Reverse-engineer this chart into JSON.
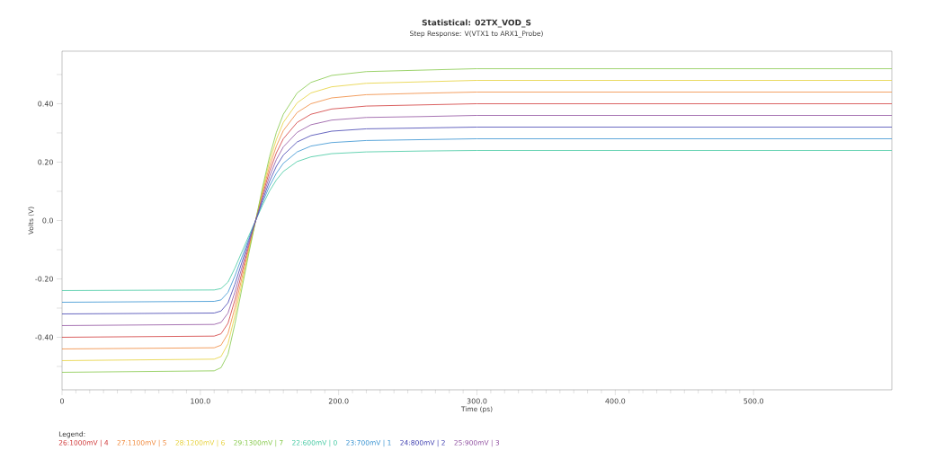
{
  "chart_data": {
    "type": "line",
    "title": "Statistical: 02TX_VOD_S",
    "subtitle": "Step Response: V(VTX1 to ARX1_Probe)",
    "xlabel": "Time (ps)",
    "ylabel": "Volts (V)",
    "legend_title": "Legend:",
    "legend": "bottom",
    "line_style": "solid",
    "x": [
      0,
      110,
      115,
      120,
      125,
      130,
      135,
      140,
      145,
      150,
      155,
      160,
      170,
      180,
      195,
      220,
      260,
      300,
      600
    ],
    "xlim": [
      0,
      600
    ],
    "ylim": [
      -0.58,
      0.58
    ],
    "xticks": [
      {
        "value": 0,
        "label": "0"
      },
      {
        "value": 100,
        "label": "100.0"
      },
      {
        "value": 200,
        "label": "200.0"
      },
      {
        "value": 300,
        "label": "300.0"
      },
      {
        "value": 400,
        "label": "400.0"
      },
      {
        "value": 500,
        "label": "500.0"
      }
    ],
    "yticks": [
      {
        "value": -0.5,
        "label": null
      },
      {
        "value": -0.4,
        "label": "-0.40"
      },
      {
        "value": -0.3,
        "label": null
      },
      {
        "value": -0.2,
        "label": "-0.20"
      },
      {
        "value": -0.1,
        "label": null
      },
      {
        "value": 0,
        "label": "0.0"
      },
      {
        "value": 0.1,
        "label": null
      },
      {
        "value": 0.2,
        "label": "0.20"
      },
      {
        "value": 0.3,
        "label": null
      },
      {
        "value": 0.4,
        "label": "0.40"
      },
      {
        "value": 0.5,
        "label": null
      }
    ],
    "series": [
      {
        "name": "26:1000mV | 4",
        "color": "#d03838",
        "values": [
          -0.4,
          -0.396,
          -0.388,
          -0.352,
          -0.272,
          -0.18,
          -0.088,
          0,
          0.088,
          0.168,
          0.232,
          0.28,
          0.336,
          0.364,
          0.382,
          0.392,
          0.396,
          0.4,
          0.4
        ]
      },
      {
        "name": "27:1100mV | 5",
        "color": "#f0883a",
        "values": [
          -0.44,
          -0.436,
          -0.427,
          -0.387,
          -0.299,
          -0.198,
          -0.097,
          0,
          0.097,
          0.185,
          0.255,
          0.308,
          0.37,
          0.4,
          0.42,
          0.431,
          0.436,
          0.44,
          0.44
        ]
      },
      {
        "name": "28:1200mV | 6",
        "color": "#e6d038",
        "values": [
          -0.48,
          -0.475,
          -0.466,
          -0.422,
          -0.326,
          -0.216,
          -0.106,
          0,
          0.106,
          0.202,
          0.278,
          0.336,
          0.403,
          0.437,
          0.458,
          0.47,
          0.475,
          0.48,
          0.48
        ]
      },
      {
        "name": "29:1300mV | 7",
        "color": "#84c848",
        "values": [
          -0.52,
          -0.515,
          -0.504,
          -0.458,
          -0.354,
          -0.234,
          -0.114,
          0,
          0.114,
          0.218,
          0.302,
          0.364,
          0.437,
          0.473,
          0.497,
          0.51,
          0.515,
          0.52,
          0.52
        ]
      },
      {
        "name": "22:600mV | 0",
        "color": "#40c8a0",
        "values": [
          -0.24,
          -0.238,
          -0.233,
          -0.211,
          -0.163,
          -0.108,
          -0.053,
          0,
          0.053,
          0.101,
          0.139,
          0.168,
          0.202,
          0.218,
          0.229,
          0.235,
          0.238,
          0.24,
          0.24
        ]
      },
      {
        "name": "23:700mV | 1",
        "color": "#3490d0",
        "values": [
          -0.28,
          -0.277,
          -0.272,
          -0.246,
          -0.19,
          -0.126,
          -0.062,
          0,
          0.062,
          0.118,
          0.162,
          0.196,
          0.235,
          0.255,
          0.267,
          0.274,
          0.277,
          0.28,
          0.28
        ]
      },
      {
        "name": "24:800mV | 2",
        "color": "#4040b0",
        "values": [
          -0.32,
          -0.317,
          -0.31,
          -0.282,
          -0.218,
          -0.144,
          -0.07,
          0,
          0.07,
          0.134,
          0.186,
          0.224,
          0.269,
          0.291,
          0.306,
          0.314,
          0.317,
          0.32,
          0.32
        ]
      },
      {
        "name": "25:900mV | 3",
        "color": "#9050a0",
        "values": [
          -0.36,
          -0.356,
          -0.349,
          -0.317,
          -0.245,
          -0.162,
          -0.079,
          0,
          0.079,
          0.151,
          0.209,
          0.252,
          0.302,
          0.328,
          0.344,
          0.353,
          0.356,
          0.36,
          0.36
        ]
      }
    ]
  }
}
